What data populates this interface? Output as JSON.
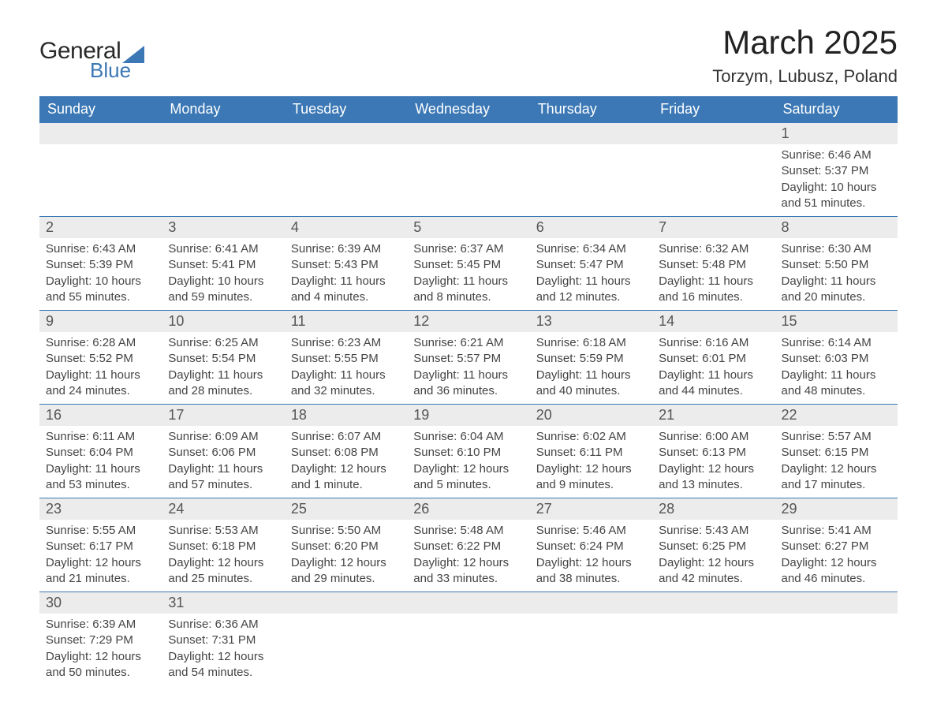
{
  "brand": {
    "general": "General",
    "blue": "Blue"
  },
  "header": {
    "month_title": "March 2025",
    "location": "Torzym, Lubusz, Poland"
  },
  "styling": {
    "header_bg": "#3b78b5",
    "header_fg": "#ffffff",
    "daynum_bg": "#ececec",
    "daynum_fg": "#555555",
    "body_fg": "#444444",
    "row_border": "#3b78b5",
    "page_bg": "#ffffff",
    "month_title_fontsize": 42,
    "location_fontsize": 22,
    "header_fontsize": 18,
    "daynum_fontsize": 18,
    "detail_fontsize": 15,
    "columns": 7,
    "col_width_pct": 14.285
  },
  "weekdays": [
    "Sunday",
    "Monday",
    "Tuesday",
    "Wednesday",
    "Thursday",
    "Friday",
    "Saturday"
  ],
  "weeks": [
    [
      null,
      null,
      null,
      null,
      null,
      null,
      {
        "n": "1",
        "sunrise": "Sunrise: 6:46 AM",
        "sunset": "Sunset: 5:37 PM",
        "day1": "Daylight: 10 hours",
        "day2": "and 51 minutes."
      }
    ],
    [
      {
        "n": "2",
        "sunrise": "Sunrise: 6:43 AM",
        "sunset": "Sunset: 5:39 PM",
        "day1": "Daylight: 10 hours",
        "day2": "and 55 minutes."
      },
      {
        "n": "3",
        "sunrise": "Sunrise: 6:41 AM",
        "sunset": "Sunset: 5:41 PM",
        "day1": "Daylight: 10 hours",
        "day2": "and 59 minutes."
      },
      {
        "n": "4",
        "sunrise": "Sunrise: 6:39 AM",
        "sunset": "Sunset: 5:43 PM",
        "day1": "Daylight: 11 hours",
        "day2": "and 4 minutes."
      },
      {
        "n": "5",
        "sunrise": "Sunrise: 6:37 AM",
        "sunset": "Sunset: 5:45 PM",
        "day1": "Daylight: 11 hours",
        "day2": "and 8 minutes."
      },
      {
        "n": "6",
        "sunrise": "Sunrise: 6:34 AM",
        "sunset": "Sunset: 5:47 PM",
        "day1": "Daylight: 11 hours",
        "day2": "and 12 minutes."
      },
      {
        "n": "7",
        "sunrise": "Sunrise: 6:32 AM",
        "sunset": "Sunset: 5:48 PM",
        "day1": "Daylight: 11 hours",
        "day2": "and 16 minutes."
      },
      {
        "n": "8",
        "sunrise": "Sunrise: 6:30 AM",
        "sunset": "Sunset: 5:50 PM",
        "day1": "Daylight: 11 hours",
        "day2": "and 20 minutes."
      }
    ],
    [
      {
        "n": "9",
        "sunrise": "Sunrise: 6:28 AM",
        "sunset": "Sunset: 5:52 PM",
        "day1": "Daylight: 11 hours",
        "day2": "and 24 minutes."
      },
      {
        "n": "10",
        "sunrise": "Sunrise: 6:25 AM",
        "sunset": "Sunset: 5:54 PM",
        "day1": "Daylight: 11 hours",
        "day2": "and 28 minutes."
      },
      {
        "n": "11",
        "sunrise": "Sunrise: 6:23 AM",
        "sunset": "Sunset: 5:55 PM",
        "day1": "Daylight: 11 hours",
        "day2": "and 32 minutes."
      },
      {
        "n": "12",
        "sunrise": "Sunrise: 6:21 AM",
        "sunset": "Sunset: 5:57 PM",
        "day1": "Daylight: 11 hours",
        "day2": "and 36 minutes."
      },
      {
        "n": "13",
        "sunrise": "Sunrise: 6:18 AM",
        "sunset": "Sunset: 5:59 PM",
        "day1": "Daylight: 11 hours",
        "day2": "and 40 minutes."
      },
      {
        "n": "14",
        "sunrise": "Sunrise: 6:16 AM",
        "sunset": "Sunset: 6:01 PM",
        "day1": "Daylight: 11 hours",
        "day2": "and 44 minutes."
      },
      {
        "n": "15",
        "sunrise": "Sunrise: 6:14 AM",
        "sunset": "Sunset: 6:03 PM",
        "day1": "Daylight: 11 hours",
        "day2": "and 48 minutes."
      }
    ],
    [
      {
        "n": "16",
        "sunrise": "Sunrise: 6:11 AM",
        "sunset": "Sunset: 6:04 PM",
        "day1": "Daylight: 11 hours",
        "day2": "and 53 minutes."
      },
      {
        "n": "17",
        "sunrise": "Sunrise: 6:09 AM",
        "sunset": "Sunset: 6:06 PM",
        "day1": "Daylight: 11 hours",
        "day2": "and 57 minutes."
      },
      {
        "n": "18",
        "sunrise": "Sunrise: 6:07 AM",
        "sunset": "Sunset: 6:08 PM",
        "day1": "Daylight: 12 hours",
        "day2": "and 1 minute."
      },
      {
        "n": "19",
        "sunrise": "Sunrise: 6:04 AM",
        "sunset": "Sunset: 6:10 PM",
        "day1": "Daylight: 12 hours",
        "day2": "and 5 minutes."
      },
      {
        "n": "20",
        "sunrise": "Sunrise: 6:02 AM",
        "sunset": "Sunset: 6:11 PM",
        "day1": "Daylight: 12 hours",
        "day2": "and 9 minutes."
      },
      {
        "n": "21",
        "sunrise": "Sunrise: 6:00 AM",
        "sunset": "Sunset: 6:13 PM",
        "day1": "Daylight: 12 hours",
        "day2": "and 13 minutes."
      },
      {
        "n": "22",
        "sunrise": "Sunrise: 5:57 AM",
        "sunset": "Sunset: 6:15 PM",
        "day1": "Daylight: 12 hours",
        "day2": "and 17 minutes."
      }
    ],
    [
      {
        "n": "23",
        "sunrise": "Sunrise: 5:55 AM",
        "sunset": "Sunset: 6:17 PM",
        "day1": "Daylight: 12 hours",
        "day2": "and 21 minutes."
      },
      {
        "n": "24",
        "sunrise": "Sunrise: 5:53 AM",
        "sunset": "Sunset: 6:18 PM",
        "day1": "Daylight: 12 hours",
        "day2": "and 25 minutes."
      },
      {
        "n": "25",
        "sunrise": "Sunrise: 5:50 AM",
        "sunset": "Sunset: 6:20 PM",
        "day1": "Daylight: 12 hours",
        "day2": "and 29 minutes."
      },
      {
        "n": "26",
        "sunrise": "Sunrise: 5:48 AM",
        "sunset": "Sunset: 6:22 PM",
        "day1": "Daylight: 12 hours",
        "day2": "and 33 minutes."
      },
      {
        "n": "27",
        "sunrise": "Sunrise: 5:46 AM",
        "sunset": "Sunset: 6:24 PM",
        "day1": "Daylight: 12 hours",
        "day2": "and 38 minutes."
      },
      {
        "n": "28",
        "sunrise": "Sunrise: 5:43 AM",
        "sunset": "Sunset: 6:25 PM",
        "day1": "Daylight: 12 hours",
        "day2": "and 42 minutes."
      },
      {
        "n": "29",
        "sunrise": "Sunrise: 5:41 AM",
        "sunset": "Sunset: 6:27 PM",
        "day1": "Daylight: 12 hours",
        "day2": "and 46 minutes."
      }
    ],
    [
      {
        "n": "30",
        "sunrise": "Sunrise: 6:39 AM",
        "sunset": "Sunset: 7:29 PM",
        "day1": "Daylight: 12 hours",
        "day2": "and 50 minutes."
      },
      {
        "n": "31",
        "sunrise": "Sunrise: 6:36 AM",
        "sunset": "Sunset: 7:31 PM",
        "day1": "Daylight: 12 hours",
        "day2": "and 54 minutes."
      },
      null,
      null,
      null,
      null,
      null
    ]
  ]
}
